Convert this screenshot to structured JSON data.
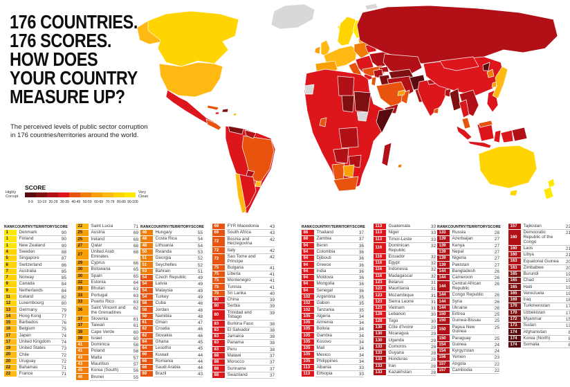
{
  "header": {
    "title_lines": [
      "176 COUNTRIES.",
      "176 SCORES.",
      "HOW DOES",
      "YOUR COUNTRY",
      "MEASURE UP?"
    ],
    "subtitle_lines": [
      "The perceived levels of public sector corruption",
      "in 176 countries/territories around the world."
    ]
  },
  "legend": {
    "label": "SCORE",
    "left_label_lines": [
      "Highly",
      "Corrupt"
    ],
    "right_label_lines": [
      "Very",
      "Clean"
    ],
    "brackets": [
      "0-9",
      "10-19",
      "20-29",
      "30-39",
      "40-49",
      "50-59",
      "60-69",
      "70-79",
      "80-89",
      "90-100"
    ],
    "colors": [
      "#5A0B0F",
      "#7E1012",
      "#B11016",
      "#DC161B",
      "#E8540D",
      "#F07D07",
      "#F9A005",
      "#FFB912",
      "#FFD400",
      "#FFE900"
    ],
    "no_data_color": "#D8D8D8"
  },
  "table": {
    "column_headers": [
      "RANK",
      "COUNTRY/TERRITORY",
      "SCORE"
    ],
    "row_format": [
      "rank",
      "country",
      "score"
    ],
    "columns": [
      {
        "has_header": true,
        "rows": [
          [
            1,
            "Denmark",
            90
          ],
          [
            1,
            "Finland",
            90
          ],
          [
            1,
            "New Zealand",
            90
          ],
          [
            4,
            "Sweden",
            88
          ],
          [
            5,
            "Singapore",
            87
          ],
          [
            6,
            "Switzerland",
            86
          ],
          [
            7,
            "Australia",
            85
          ],
          [
            7,
            "Norway",
            85
          ],
          [
            9,
            "Canada",
            84
          ],
          [
            9,
            "Netherlands",
            84
          ],
          [
            11,
            "Iceland",
            82
          ],
          [
            12,
            "Luxembourg",
            80
          ],
          [
            13,
            "Germany",
            79
          ],
          [
            14,
            "Hong Kong",
            77
          ],
          [
            15,
            "Barbados",
            76
          ],
          [
            16,
            "Belgium",
            75
          ],
          [
            17,
            "Japan",
            74
          ],
          [
            17,
            "United Kingdom",
            74
          ],
          [
            19,
            "United States",
            73
          ],
          [
            20,
            "Chile",
            72
          ],
          [
            20,
            "Uruguay",
            72
          ],
          [
            22,
            "Bahamas",
            71
          ],
          [
            22,
            "France",
            71
          ]
        ]
      },
      {
        "has_header": false,
        "rows": [
          [
            22,
            "Saint Lucia",
            71
          ],
          [
            25,
            "Austria",
            69
          ],
          [
            25,
            "Ireland",
            69
          ],
          [
            27,
            "Qatar",
            68
          ],
          [
            27,
            "United Arab Emirates",
            68
          ],
          [
            29,
            "Cyprus",
            66
          ],
          [
            30,
            "Botswana",
            65
          ],
          [
            30,
            "Spain",
            65
          ],
          [
            32,
            "Estonia",
            64
          ],
          [
            33,
            "Bhutan",
            63
          ],
          [
            33,
            "Portugal",
            63
          ],
          [
            33,
            "Puerto Rico",
            63
          ],
          [
            36,
            "Saint Vincent and the Grenadines",
            62
          ],
          [
            37,
            "Slovenia",
            61
          ],
          [
            37,
            "Taiwan",
            61
          ],
          [
            39,
            "Cape Verde",
            60
          ],
          [
            39,
            "Israel",
            60
          ],
          [
            41,
            "Dominica",
            58
          ],
          [
            41,
            "Poland",
            58
          ],
          [
            43,
            "Malta",
            57
          ],
          [
            43,
            "Mauritius",
            57
          ],
          [
            45,
            "Korea (South)",
            56
          ],
          [
            46,
            "Brunei",
            55
          ]
        ]
      },
      {
        "has_header": true,
        "rows": [
          [
            46,
            "Hungary",
            55
          ],
          [
            48,
            "Costa Rica",
            54
          ],
          [
            48,
            "Lithuania",
            54
          ],
          [
            50,
            "Rwanda",
            53
          ],
          [
            51,
            "Georgia",
            52
          ],
          [
            51,
            "Seychelles",
            52
          ],
          [
            53,
            "Bahrain",
            51
          ],
          [
            54,
            "Czech Republic",
            49
          ],
          [
            54,
            "Latvia",
            49
          ],
          [
            54,
            "Malaysia",
            49
          ],
          [
            54,
            "Turkey",
            49
          ],
          [
            58,
            "Cuba",
            48
          ],
          [
            58,
            "Jordan",
            48
          ],
          [
            58,
            "Namibia",
            48
          ],
          [
            61,
            "Oman",
            47
          ],
          [
            62,
            "Croatia",
            46
          ],
          [
            62,
            "Slovakia",
            46
          ],
          [
            64,
            "Ghana",
            45
          ],
          [
            64,
            "Lesotho",
            45
          ],
          [
            66,
            "Kuwait",
            44
          ],
          [
            66,
            "Romania",
            44
          ],
          [
            66,
            "Saudi Arabia",
            44
          ],
          [
            69,
            "Brazil",
            43
          ]
        ]
      },
      {
        "has_header": false,
        "rows": [
          [
            69,
            "FYR Macedonia",
            43
          ],
          [
            69,
            "South Africa",
            43
          ],
          [
            72,
            "Bosnia and Herzegovina",
            42
          ],
          [
            72,
            "Italy",
            42
          ],
          [
            72,
            "Sao Tome and Principe",
            42
          ],
          [
            75,
            "Bulgaria",
            41
          ],
          [
            75,
            "Liberia",
            41
          ],
          [
            75,
            "Montenegro",
            41
          ],
          [
            75,
            "Tunisia",
            41
          ],
          [
            79,
            "Sri Lanka",
            40
          ],
          [
            80,
            "China",
            39
          ],
          [
            80,
            "Serbia",
            39
          ],
          [
            80,
            "Trinidad and Tobago",
            39
          ],
          [
            83,
            "Burkina Faso",
            38
          ],
          [
            83,
            "El Salvador",
            38
          ],
          [
            83,
            "Jamaica",
            38
          ],
          [
            83,
            "Panama",
            38
          ],
          [
            83,
            "Peru",
            38
          ],
          [
            88,
            "Malawi",
            37
          ],
          [
            88,
            "Morocco",
            37
          ],
          [
            88,
            "Suriname",
            37
          ],
          [
            88,
            "Swaziland",
            37
          ]
        ]
      },
      {
        "has_header": true,
        "rows": [
          [
            88,
            "Thailand",
            37
          ],
          [
            88,
            "Zambia",
            37
          ],
          [
            94,
            "Benin",
            36
          ],
          [
            94,
            "Colombia",
            36
          ],
          [
            94,
            "Djibouti",
            36
          ],
          [
            94,
            "Greece",
            36
          ],
          [
            94,
            "India",
            36
          ],
          [
            94,
            "Moldova",
            36
          ],
          [
            94,
            "Mongolia",
            36
          ],
          [
            94,
            "Senegal",
            36
          ],
          [
            102,
            "Argentina",
            35
          ],
          [
            102,
            "Gabon",
            35
          ],
          [
            102,
            "Tanzania",
            35
          ],
          [
            105,
            "Algeria",
            34
          ],
          [
            105,
            "Armenia",
            34
          ],
          [
            105,
            "Bolivia",
            34
          ],
          [
            105,
            "Gambia",
            34
          ],
          [
            105,
            "Kosovo",
            34
          ],
          [
            105,
            "Mali",
            34
          ],
          [
            105,
            "Mexico",
            34
          ],
          [
            105,
            "Philippines",
            34
          ],
          [
            113,
            "Albania",
            33
          ],
          [
            113,
            "Ethiopia",
            33
          ]
        ]
      },
      {
        "has_header": false,
        "rows": [
          [
            113,
            "Guatemala",
            33
          ],
          [
            113,
            "Niger",
            33
          ],
          [
            113,
            "Timor-Leste",
            33
          ],
          [
            116,
            "Dominican Republic",
            32
          ],
          [
            116,
            "Ecuador",
            32
          ],
          [
            116,
            "Egypt",
            32
          ],
          [
            116,
            "Indonesia",
            32
          ],
          [
            116,
            "Madagascar",
            32
          ],
          [
            123,
            "Belarus",
            31
          ],
          [
            123,
            "Mauritania",
            31
          ],
          [
            123,
            "Mozambique",
            31
          ],
          [
            123,
            "Sierra Leone",
            31
          ],
          [
            123,
            "Vietnam",
            31
          ],
          [
            128,
            "Lebanon",
            30
          ],
          [
            128,
            "Togo",
            30
          ],
          [
            130,
            "Côte d'Ivoire",
            29
          ],
          [
            130,
            "Nicaragua",
            29
          ],
          [
            130,
            "Uganda",
            29
          ],
          [
            133,
            "Comoros",
            28
          ],
          [
            133,
            "Guyana",
            28
          ],
          [
            133,
            "Honduras",
            28
          ],
          [
            133,
            "Iran",
            28
          ],
          [
            133,
            "Kazakhstan",
            28
          ]
        ]
      },
      {
        "has_header": true,
        "rows": [
          [
            133,
            "Russia",
            28
          ],
          [
            139,
            "Azerbaijan",
            27
          ],
          [
            139,
            "Kenya",
            27
          ],
          [
            139,
            "Nepal",
            27
          ],
          [
            139,
            "Nigeria",
            27
          ],
          [
            139,
            "Pakistan",
            27
          ],
          [
            144,
            "Bangladesh",
            26
          ],
          [
            144,
            "Cameroon",
            26
          ],
          [
            144,
            "Central African Republic",
            26
          ],
          [
            144,
            "Congo Republic",
            26
          ],
          [
            144,
            "Syria",
            26
          ],
          [
            144,
            "Ukraine",
            26
          ],
          [
            150,
            "Eritrea",
            25
          ],
          [
            150,
            "Guinea-Bissau",
            25
          ],
          [
            150,
            "Papua New Guinea",
            25
          ],
          [
            150,
            "Paraguay",
            25
          ],
          [
            154,
            "Guinea",
            24
          ],
          [
            154,
            "Kyrgyzstan",
            24
          ],
          [
            156,
            "Yemen",
            23
          ],
          [
            157,
            "Angola",
            22
          ],
          [
            157,
            "Cambodia",
            22
          ]
        ]
      },
      {
        "has_header": false,
        "rows": [
          [
            157,
            "Tajikistan",
            22
          ],
          [
            160,
            "Democratic Republic of the Congo",
            21
          ],
          [
            160,
            "Laos",
            21
          ],
          [
            160,
            "Libya",
            21
          ],
          [
            163,
            "Equatorial Guinea",
            20
          ],
          [
            163,
            "Zimbabwe",
            20
          ],
          [
            165,
            "Burundi",
            19
          ],
          [
            165,
            "Chad",
            19
          ],
          [
            165,
            "Haiti",
            19
          ],
          [
            165,
            "Venezuela",
            19
          ],
          [
            169,
            "Iraq",
            18
          ],
          [
            170,
            "Turkmenistan",
            17
          ],
          [
            170,
            "Uzbekistan",
            17
          ],
          [
            172,
            "Myanmar",
            15
          ],
          [
            173,
            "Sudan",
            13
          ],
          [
            174,
            "Afghanistan",
            8
          ],
          [
            174,
            "Korea (North)",
            8
          ],
          [
            174,
            "Somalia",
            8
          ]
        ]
      }
    ]
  }
}
